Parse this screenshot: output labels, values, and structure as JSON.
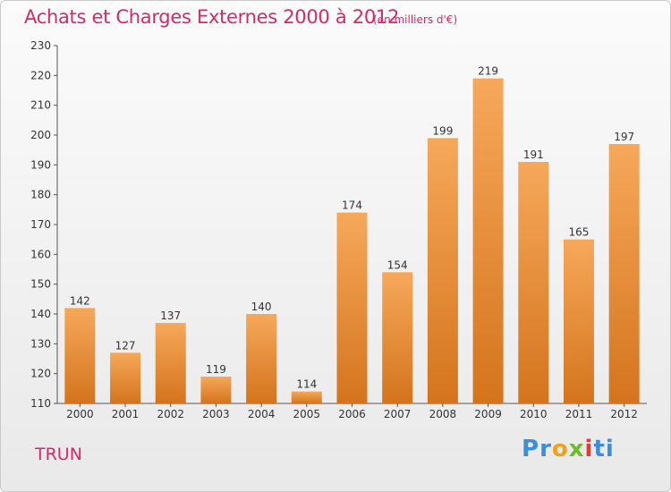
{
  "title": "Achats et Charges Externes 2000 à 2012",
  "unit": "(en milliers d'€)",
  "city": "TRUN",
  "logo": {
    "letters": [
      "P",
      "r",
      "o",
      "x",
      "i",
      "t",
      "i"
    ],
    "colors": [
      "#3b8fd6",
      "#3b8fd6",
      "#f0a21b",
      "#6dbd2a",
      "#e23b32",
      "#3b8fd6",
      "#3b8fd6"
    ]
  },
  "colors": {
    "title": "#d32a6b",
    "bar": "#f0963d",
    "bar_dark": "#d4741d"
  },
  "chart_data": {
    "type": "bar",
    "categories": [
      "2000",
      "2001",
      "2002",
      "2003",
      "2004",
      "2005",
      "2006",
      "2007",
      "2008",
      "2009",
      "2010",
      "2011",
      "2012"
    ],
    "values": [
      142,
      127,
      137,
      119,
      140,
      114,
      174,
      154,
      199,
      219,
      191,
      165,
      197
    ],
    "ylim": [
      110,
      230
    ],
    "yticks": [
      110,
      120,
      130,
      140,
      150,
      160,
      170,
      180,
      190,
      200,
      210,
      220,
      230
    ],
    "grid": false
  }
}
